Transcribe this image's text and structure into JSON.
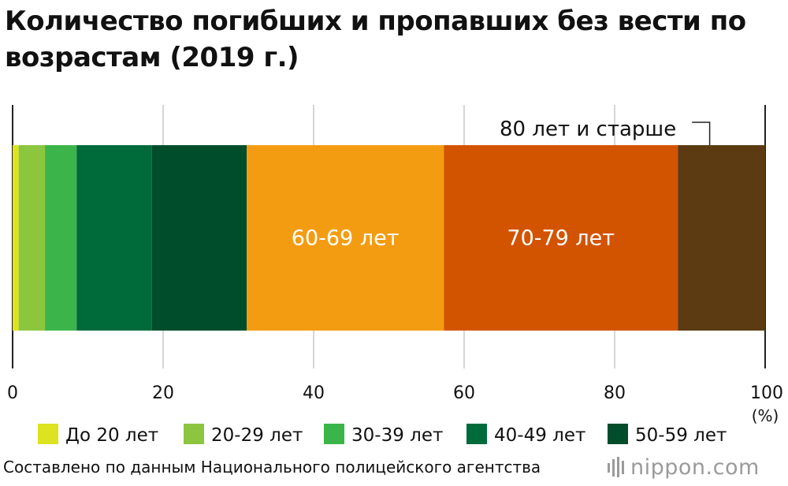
{
  "title": "Количество погибших и пропавших без вести по возрастам (2019 г.)",
  "source": "Составлено по данным Национального полицейского агентства",
  "logo": {
    "text": "nippon.com",
    "icon": "nippon-logo-icon",
    "color": "#9a9a9a"
  },
  "chart_data": {
    "type": "bar",
    "orientation": "horizontal",
    "stacked": true,
    "normalized_percent": true,
    "xlim": [
      0,
      100
    ],
    "xticks": [
      "0",
      "20",
      "40",
      "60",
      "80",
      "100"
    ],
    "xunit": "(%)",
    "grid": true,
    "legend_position": "bottom",
    "series": [
      {
        "name": "До 20 лет",
        "value": 0.8,
        "color": "#dde31f",
        "legend": true
      },
      {
        "name": "20-29 лет",
        "value": 3.5,
        "color": "#8cc63f",
        "legend": true
      },
      {
        "name": "30-39 лет",
        "value": 4.2,
        "color": "#3bb54a",
        "legend": true
      },
      {
        "name": "40-49 лет",
        "value": 10.0,
        "color": "#006b3a",
        "legend": true
      },
      {
        "name": "50-59 лет",
        "value": 12.6,
        "color": "#004d2c",
        "legend": true
      },
      {
        "name": "60-69 лет",
        "value": 26.2,
        "color": "#f39c12",
        "legend": false,
        "inside_label": true
      },
      {
        "name": "70-79 лет",
        "value": 31.1,
        "color": "#d35400",
        "legend": false,
        "inside_label": true
      },
      {
        "name": "80 лет и старше",
        "value": 11.6,
        "color": "#5c3a12",
        "legend": false,
        "callout_label": true
      }
    ]
  }
}
